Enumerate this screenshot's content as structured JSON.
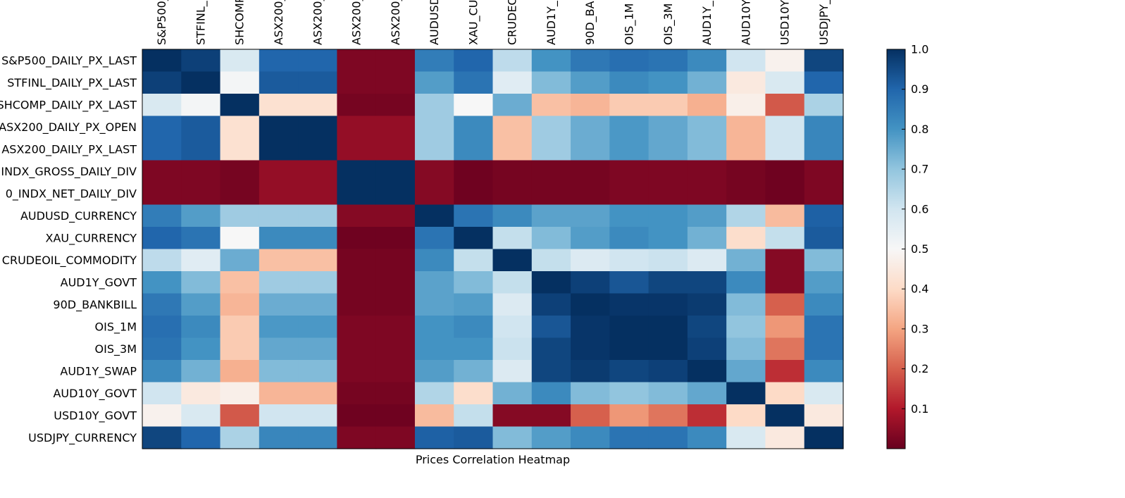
{
  "chart_data": {
    "type": "heatmap",
    "title": "",
    "xlabel": "Prices Correlation Heatmap",
    "ylabel": "",
    "x_tick_labels": [
      "S&P500_",
      "STFINL_",
      "SHCOMP",
      "ASX200_",
      "ASX200_",
      "ASX200_",
      "ASX200_",
      "AUDUSD",
      "XAU_CU",
      "CRUDEO",
      "AUD1Y_",
      "90D_BA",
      "OIS_1M",
      "OIS_3M",
      "AUD1Y_",
      "AUD10Y",
      "USD10Y_",
      "USDJPY_"
    ],
    "y_tick_labels": [
      "S&P500_DAILY_PX_LAST",
      "STFINL_DAILY_PX_LAST",
      "SHCOMP_DAILY_PX_LAST",
      "ASX200_DAILY_PX_OPEN",
      "ASX200_DAILY_PX_LAST",
      "INDX_GROSS_DAILY_DIV",
      "0_INDX_NET_DAILY_DIV",
      "AUDUSD_CURRENCY",
      "XAU_CURRENCY",
      "CRUDEOIL_COMMODITY",
      "AUD1Y_GOVT",
      "90D_BANKBILL",
      "OIS_1M",
      "OIS_3M",
      "AUD1Y_SWAP",
      "AUD10Y_GOVT",
      "USD10Y_GOVT",
      "USDJPY_CURRENCY"
    ],
    "values": [
      [
        1.0,
        0.97,
        0.58,
        0.9,
        0.9,
        0.03,
        0.03,
        0.85,
        0.9,
        0.63,
        0.8,
        0.86,
        0.88,
        0.87,
        0.82,
        0.6,
        0.48,
        0.96
      ],
      [
        0.97,
        1.0,
        0.51,
        0.92,
        0.92,
        0.03,
        0.03,
        0.78,
        0.87,
        0.56,
        0.72,
        0.78,
        0.82,
        0.8,
        0.74,
        0.45,
        0.58,
        0.9
      ],
      [
        0.58,
        0.51,
        1.0,
        0.42,
        0.42,
        0.02,
        0.02,
        0.68,
        0.5,
        0.75,
        0.35,
        0.33,
        0.37,
        0.37,
        0.32,
        0.47,
        0.19,
        0.66
      ],
      [
        0.9,
        0.92,
        0.42,
        1.0,
        1.0,
        0.06,
        0.06,
        0.68,
        0.82,
        0.35,
        0.68,
        0.75,
        0.79,
        0.76,
        0.72,
        0.33,
        0.6,
        0.83
      ],
      [
        0.9,
        0.92,
        0.42,
        1.0,
        1.0,
        0.06,
        0.06,
        0.68,
        0.82,
        0.35,
        0.68,
        0.75,
        0.79,
        0.76,
        0.72,
        0.33,
        0.6,
        0.83
      ],
      [
        0.03,
        0.03,
        0.02,
        0.06,
        0.06,
        1.0,
        1.0,
        0.04,
        0.01,
        0.02,
        0.02,
        0.02,
        0.03,
        0.03,
        0.03,
        0.02,
        0.01,
        0.03
      ],
      [
        0.03,
        0.03,
        0.02,
        0.06,
        0.06,
        1.0,
        1.0,
        0.04,
        0.01,
        0.02,
        0.02,
        0.02,
        0.03,
        0.03,
        0.03,
        0.02,
        0.01,
        0.03
      ],
      [
        0.85,
        0.78,
        0.68,
        0.68,
        0.68,
        0.04,
        0.04,
        1.0,
        0.87,
        0.82,
        0.77,
        0.77,
        0.8,
        0.8,
        0.78,
        0.65,
        0.34,
        0.91
      ],
      [
        0.9,
        0.87,
        0.5,
        0.82,
        0.82,
        0.01,
        0.01,
        0.87,
        1.0,
        0.62,
        0.72,
        0.78,
        0.82,
        0.8,
        0.74,
        0.41,
        0.62,
        0.92
      ],
      [
        0.63,
        0.56,
        0.75,
        0.35,
        0.35,
        0.02,
        0.02,
        0.82,
        0.62,
        1.0,
        0.62,
        0.57,
        0.6,
        0.61,
        0.57,
        0.74,
        0.04,
        0.72
      ],
      [
        0.8,
        0.72,
        0.35,
        0.68,
        0.68,
        0.02,
        0.02,
        0.77,
        0.72,
        0.62,
        1.0,
        0.97,
        0.93,
        0.96,
        0.96,
        0.82,
        0.04,
        0.78
      ],
      [
        0.86,
        0.78,
        0.33,
        0.75,
        0.75,
        0.02,
        0.02,
        0.77,
        0.78,
        0.57,
        0.97,
        1.0,
        0.99,
        0.99,
        0.98,
        0.72,
        0.2,
        0.82
      ],
      [
        0.88,
        0.82,
        0.37,
        0.79,
        0.79,
        0.03,
        0.03,
        0.8,
        0.82,
        0.6,
        0.93,
        0.99,
        1.0,
        1.0,
        0.96,
        0.7,
        0.28,
        0.87
      ],
      [
        0.87,
        0.8,
        0.37,
        0.76,
        0.76,
        0.03,
        0.03,
        0.8,
        0.8,
        0.61,
        0.96,
        0.99,
        1.0,
        1.0,
        0.97,
        0.72,
        0.23,
        0.87
      ],
      [
        0.82,
        0.74,
        0.32,
        0.72,
        0.72,
        0.03,
        0.03,
        0.78,
        0.74,
        0.57,
        0.96,
        0.98,
        0.96,
        0.97,
        1.0,
        0.76,
        0.13,
        0.82
      ],
      [
        0.6,
        0.45,
        0.47,
        0.33,
        0.33,
        0.02,
        0.02,
        0.65,
        0.41,
        0.74,
        0.82,
        0.72,
        0.7,
        0.72,
        0.76,
        1.0,
        0.4,
        0.58
      ],
      [
        0.48,
        0.58,
        0.19,
        0.6,
        0.6,
        0.01,
        0.01,
        0.34,
        0.62,
        0.04,
        0.04,
        0.2,
        0.28,
        0.23,
        0.13,
        0.4,
        1.0,
        0.45
      ],
      [
        0.96,
        0.9,
        0.66,
        0.83,
        0.83,
        0.03,
        0.03,
        0.91,
        0.92,
        0.72,
        0.78,
        0.82,
        0.87,
        0.87,
        0.82,
        0.58,
        0.45,
        1.0
      ]
    ],
    "colorbar": {
      "colormap": "RdBu",
      "min": 0.0,
      "max": 1.0,
      "ticks": [
        0.1,
        0.2,
        0.3,
        0.4,
        0.5,
        0.6,
        0.7,
        0.8,
        0.9,
        1.0
      ],
      "tick_labels": [
        "0.1",
        "0.2",
        "0.3",
        "0.4",
        "0.5",
        "0.6",
        "0.7",
        "0.8",
        "0.9",
        "1.0"
      ]
    },
    "grid": false,
    "legend": "none"
  }
}
